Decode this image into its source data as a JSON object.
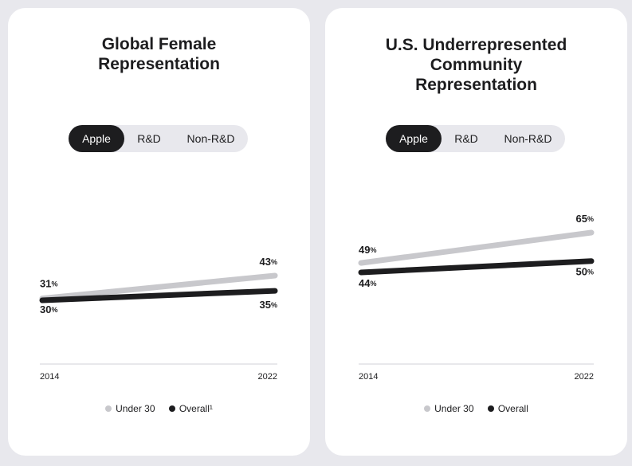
{
  "colors": {
    "under30": "#c8c8cc",
    "overall": "#1d1d1f",
    "card": "#ffffff",
    "background": "#e8e8ed",
    "axis": "#d2d2d7"
  },
  "tabs": [
    "Apple",
    "R&D",
    "Non-R&D"
  ],
  "selected_tab": "Apple",
  "cards": [
    {
      "title_lines": [
        "Global Female",
        "Representation"
      ],
      "legend": [
        {
          "label": "Under 30",
          "color": "#c8c8cc"
        },
        {
          "label": "Overall¹",
          "color": "#1d1d1f"
        }
      ]
    },
    {
      "title_lines": [
        "U.S. Underrepresented",
        "Community",
        "Representation"
      ],
      "legend": [
        {
          "label": "Under 30",
          "color": "#c8c8cc"
        },
        {
          "label": "Overall",
          "color": "#1d1d1f"
        }
      ]
    }
  ],
  "chart_data": [
    {
      "type": "line",
      "title": "Global Female Representation",
      "x": [
        "2014",
        "2022"
      ],
      "unit": "%",
      "series": [
        {
          "name": "Under 30",
          "values": [
            31,
            43
          ]
        },
        {
          "name": "Overall¹",
          "values": [
            30,
            35
          ]
        }
      ],
      "legend_position": "bottom",
      "grid": false
    },
    {
      "type": "line",
      "title": "U.S. Underrepresented Community Representation",
      "x": [
        "2014",
        "2022"
      ],
      "unit": "%",
      "series": [
        {
          "name": "Under 30",
          "values": [
            49,
            65
          ]
        },
        {
          "name": "Overall",
          "values": [
            44,
            50
          ]
        }
      ],
      "legend_position": "bottom",
      "grid": false
    }
  ]
}
